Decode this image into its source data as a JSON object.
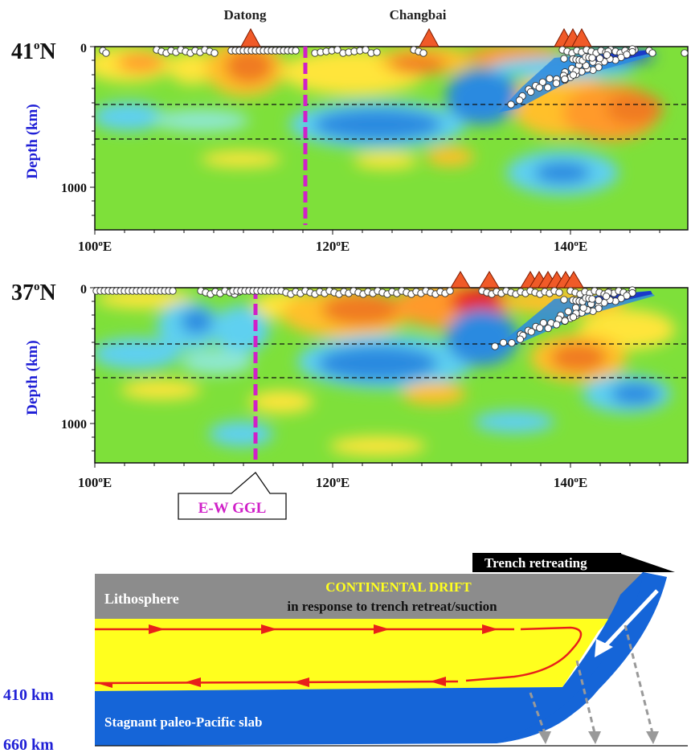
{
  "volcano_labels": {
    "datong": "Datong",
    "changbai": "Changbai"
  },
  "panels": [
    {
      "lat_label": "41",
      "lat_suffix": "N",
      "ylabel": "Depth (km)",
      "ytick_0": "0",
      "ytick_1000": "1000",
      "xticks": [
        "100oE",
        "120oE",
        "140oE"
      ]
    },
    {
      "lat_label": "37",
      "lat_suffix": "N",
      "ylabel": "Depth (km)",
      "ytick_0": "0",
      "ytick_1000": "1000",
      "xticks": [
        "100oE",
        "120oE",
        "140oE"
      ]
    }
  ],
  "ggl_label": "E-W GGL",
  "cartoon": {
    "trench_label": "Trench retreating",
    "lithosphere": "Lithosphere",
    "drift_title": "CONTINENTAL DRIFT",
    "drift_subtitle": "in response to trench retreat/suction",
    "depth_410": "410 km",
    "depth_660": "660 km",
    "slab_label": "Stagnant paleo-Pacific slab"
  },
  "colors": {
    "background_green": "#7ee03a",
    "slow_red": "#e8201a",
    "fast_blue": "#1a55d8",
    "ggl_magenta": "#d020c8",
    "mantle_yellow": "#ffff1e",
    "slab_blue": "#1565d8",
    "lithosphere_gray": "#8c8c8c",
    "depth_label_blue": "#1f1fd6"
  }
}
